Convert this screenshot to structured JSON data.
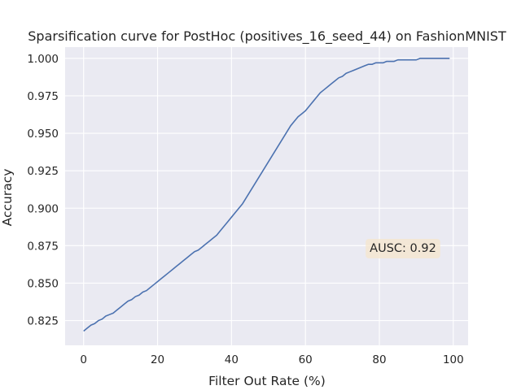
{
  "chart_data": {
    "type": "line",
    "title": "Sparsification curve for PostHoc (positives_16_seed_44) on FashionMNIST",
    "xlabel": "Filter Out Rate (%)",
    "ylabel": "Accuracy",
    "xlim": [
      -5,
      104
    ],
    "ylim": [
      0.8085,
      1.0075
    ],
    "xticks": [
      0,
      20,
      40,
      60,
      80,
      100
    ],
    "xtick_labels": [
      "0",
      "20",
      "40",
      "60",
      "80",
      "100"
    ],
    "yticks": [
      0.825,
      0.85,
      0.875,
      0.9,
      0.925,
      0.95,
      0.975,
      1.0
    ],
    "ytick_labels": [
      "0.825",
      "0.850",
      "0.875",
      "0.900",
      "0.925",
      "0.950",
      "0.975",
      "1.000"
    ],
    "grid": true,
    "background_color": "#eaeaf2",
    "series": [
      {
        "color": "#4c72b0",
        "x": [
          0,
          1,
          2,
          3,
          4,
          5,
          6,
          7,
          8,
          9,
          10,
          11,
          12,
          13,
          14,
          15,
          16,
          17,
          18,
          19,
          20,
          21,
          22,
          23,
          24,
          25,
          26,
          27,
          28,
          29,
          30,
          31,
          32,
          33,
          34,
          35,
          36,
          37,
          38,
          39,
          40,
          41,
          42,
          43,
          44,
          45,
          46,
          47,
          48,
          49,
          50,
          51,
          52,
          53,
          54,
          55,
          56,
          57,
          58,
          59,
          60,
          61,
          62,
          63,
          64,
          65,
          66,
          67,
          68,
          69,
          70,
          71,
          72,
          73,
          74,
          75,
          76,
          77,
          78,
          79,
          80,
          81,
          82,
          83,
          84,
          85,
          86,
          87,
          88,
          89,
          90,
          91,
          92,
          93,
          94,
          95,
          96,
          97,
          98,
          99
        ],
        "y": [
          0.818,
          0.82,
          0.822,
          0.823,
          0.825,
          0.826,
          0.828,
          0.829,
          0.83,
          0.832,
          0.834,
          0.836,
          0.838,
          0.839,
          0.841,
          0.842,
          0.844,
          0.845,
          0.847,
          0.849,
          0.851,
          0.853,
          0.855,
          0.857,
          0.859,
          0.861,
          0.863,
          0.865,
          0.867,
          0.869,
          0.871,
          0.872,
          0.874,
          0.876,
          0.878,
          0.88,
          0.882,
          0.885,
          0.888,
          0.891,
          0.894,
          0.897,
          0.9,
          0.903,
          0.907,
          0.911,
          0.915,
          0.919,
          0.923,
          0.927,
          0.931,
          0.935,
          0.939,
          0.943,
          0.947,
          0.951,
          0.955,
          0.958,
          0.961,
          0.963,
          0.965,
          0.968,
          0.971,
          0.974,
          0.977,
          0.979,
          0.981,
          0.983,
          0.985,
          0.987,
          0.988,
          0.99,
          0.991,
          0.992,
          0.993,
          0.994,
          0.995,
          0.996,
          0.996,
          0.997,
          0.997,
          0.997,
          0.998,
          0.998,
          0.998,
          0.999,
          0.999,
          0.999,
          0.999,
          0.999,
          0.999,
          1.0,
          1.0,
          1.0,
          1.0,
          1.0,
          1.0,
          1.0,
          1.0,
          1.0
        ]
      }
    ],
    "annotation": {
      "text": "AUSC: 0.92",
      "box_color": "#f5e6cc"
    }
  }
}
